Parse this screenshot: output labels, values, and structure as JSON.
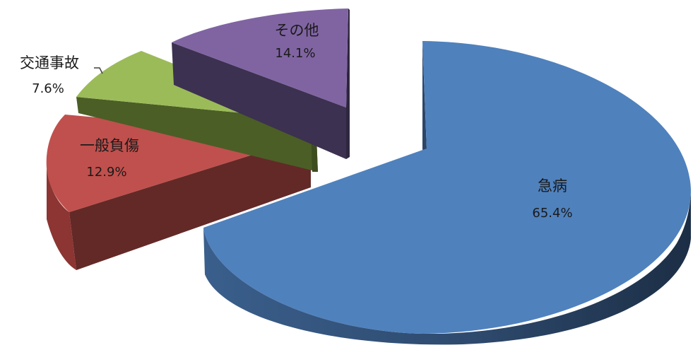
{
  "chart_data": {
    "type": "pie",
    "style": "3d-exploded",
    "slices": [
      {
        "label": "急病",
        "value": 65.4,
        "value_label": "65.4%",
        "color": "#4f81bd"
      },
      {
        "label": "一般負傷",
        "value": 12.9,
        "value_label": "12.9%",
        "color": "#c0504d"
      },
      {
        "label": "交通事故",
        "value": 7.6,
        "value_label": "7.6%",
        "color": "#9bbb59"
      },
      {
        "label": "その他",
        "value": 14.1,
        "value_label": "14.1%",
        "color": "#8064a2"
      }
    ]
  }
}
